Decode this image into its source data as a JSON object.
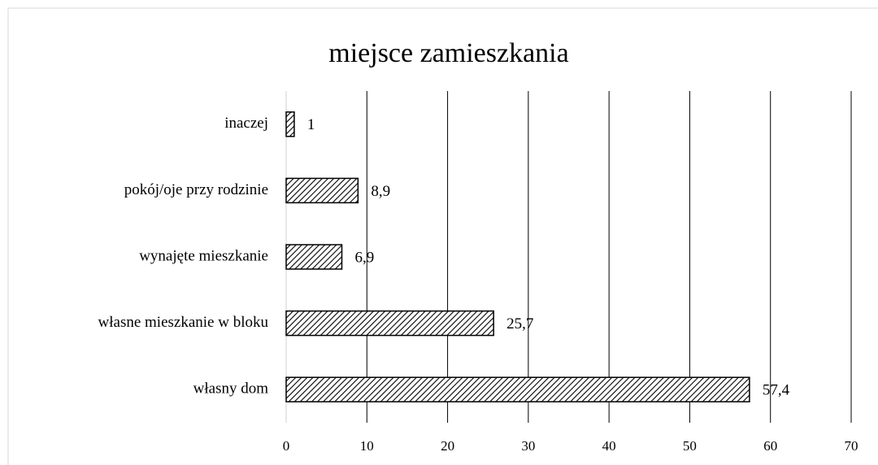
{
  "chart_data": {
    "type": "bar",
    "orientation": "horizontal",
    "title": "miejsce zamieszkania",
    "categories": [
      "inaczej",
      "pokój/oje przy rodzinie",
      "wynajęte mieszkanie",
      "własne mieszkanie w bloku",
      "własny dom"
    ],
    "values": [
      1,
      8.9,
      6.9,
      25.7,
      57.4
    ],
    "value_labels": [
      "1",
      "8,9",
      "6,9",
      "25,7",
      "57,4"
    ],
    "xlim": [
      0,
      70
    ],
    "xticks": [
      0,
      10,
      20,
      30,
      40,
      50,
      60,
      70
    ],
    "grid": true
  }
}
